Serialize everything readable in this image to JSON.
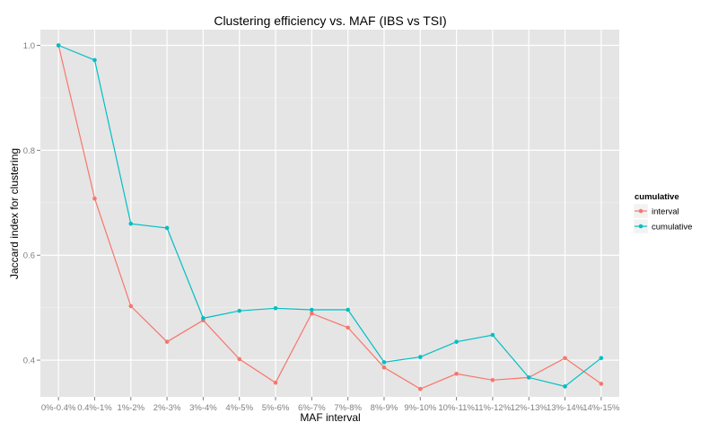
{
  "chart_data": {
    "type": "line",
    "title": "Clustering efficiency vs. MAF (IBS vs TSI)",
    "xlabel": "MAF interval",
    "ylabel": "Jaccard index for clustering",
    "categories": [
      "0%-0.4%",
      "0.4%-1%",
      "1%-2%",
      "2%-3%",
      "3%-4%",
      "4%-5%",
      "5%-6%",
      "6%-7%",
      "7%-8%",
      "8%-9%",
      "9%-10%",
      "10%-11%",
      "11%-12%",
      "12%-13%",
      "13%-14%",
      "14%-15%"
    ],
    "ylim": [
      0.33,
      1.03
    ],
    "yticks": [
      0.4,
      0.6,
      0.8,
      1.0
    ],
    "ytick_labels": [
      "0.4",
      "0.6",
      "0.8",
      "1.0"
    ],
    "grid": true,
    "legend": {
      "title": "cumulative",
      "position": "right"
    },
    "series": [
      {
        "name": "interval",
        "color": "#F8766D",
        "values": [
          1.0,
          0.708,
          0.503,
          0.435,
          0.476,
          0.402,
          0.357,
          0.489,
          0.462,
          0.386,
          0.345,
          0.374,
          0.362,
          0.367,
          0.404,
          0.355
        ]
      },
      {
        "name": "cumulative",
        "color": "#00BFC4",
        "values": [
          1.0,
          0.972,
          0.66,
          0.652,
          0.48,
          0.494,
          0.499,
          0.496,
          0.496,
          0.396,
          0.406,
          0.435,
          0.448,
          0.367,
          0.35,
          0.404
        ]
      }
    ],
    "background_color": "#E5E5E5",
    "grid_color": "#FFFFFF"
  }
}
